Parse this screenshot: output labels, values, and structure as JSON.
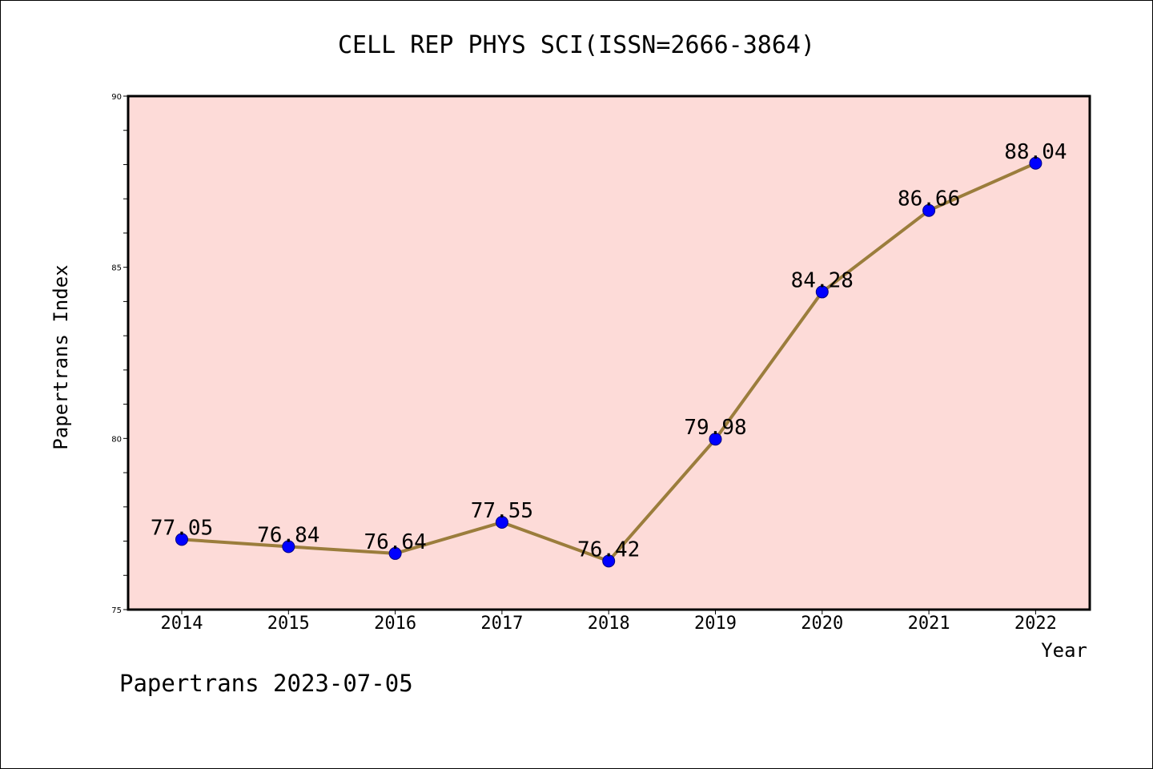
{
  "chart_data": {
    "type": "line",
    "title": "CELL REP PHYS SCI(ISSN=2666-3864)",
    "xlabel": "Year",
    "ylabel": "Papertrans Index",
    "categories": [
      "2014",
      "2015",
      "2016",
      "2017",
      "2018",
      "2019",
      "2020",
      "2021",
      "2022"
    ],
    "series": [
      {
        "values": [
          77.05,
          76.84,
          76.64,
          77.55,
          76.42,
          79.98,
          84.28,
          86.66,
          88.04
        ]
      }
    ],
    "data_labels": [
      "77.05",
      "76.84",
      "76.64",
      "77.55",
      "76.42",
      "79.98",
      "84.28",
      "86.66",
      "88.04"
    ],
    "ylim": [
      75,
      90
    ],
    "yticks": [
      75,
      80,
      85,
      90
    ],
    "grid": false,
    "legend": "none",
    "colors": {
      "plot_background": "#fddbd8",
      "line": "#9b7d3c",
      "marker_fill": "#0000ff",
      "marker_stroke": "#000080"
    }
  },
  "footer": "Papertrans 2023-07-05"
}
